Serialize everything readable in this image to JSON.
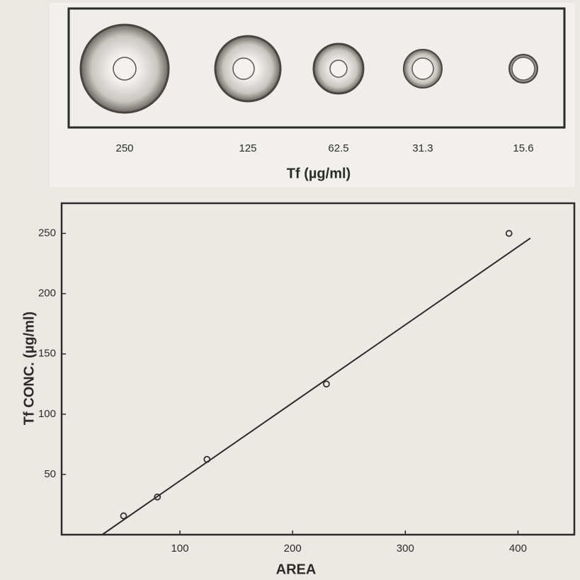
{
  "chart_data": [
    {
      "type": "rings",
      "categories": [
        "250",
        "125",
        "62.5",
        "31.3",
        "15.6"
      ],
      "xlabel": "Tf (µg/ml)"
    },
    {
      "type": "scatter",
      "xlabel": "AREA",
      "ylabel": "Tf CONC. (µg/ml)",
      "xlim": [
        -5,
        450
      ],
      "ylim": [
        0,
        275
      ],
      "xticks": [
        100,
        200,
        300,
        400
      ],
      "yticks": [
        50,
        100,
        150,
        200,
        250
      ],
      "series": [
        {
          "type": "scatter",
          "color": "#333333",
          "x": [
            50,
            80,
            124,
            230,
            392
          ],
          "values": [
            15.6,
            31.3,
            62.5,
            125,
            250
          ]
        },
        {
          "type": "line",
          "color": "#2b2b2b",
          "x": [
            31,
            411
          ],
          "values": [
            0,
            246
          ]
        }
      ]
    }
  ]
}
